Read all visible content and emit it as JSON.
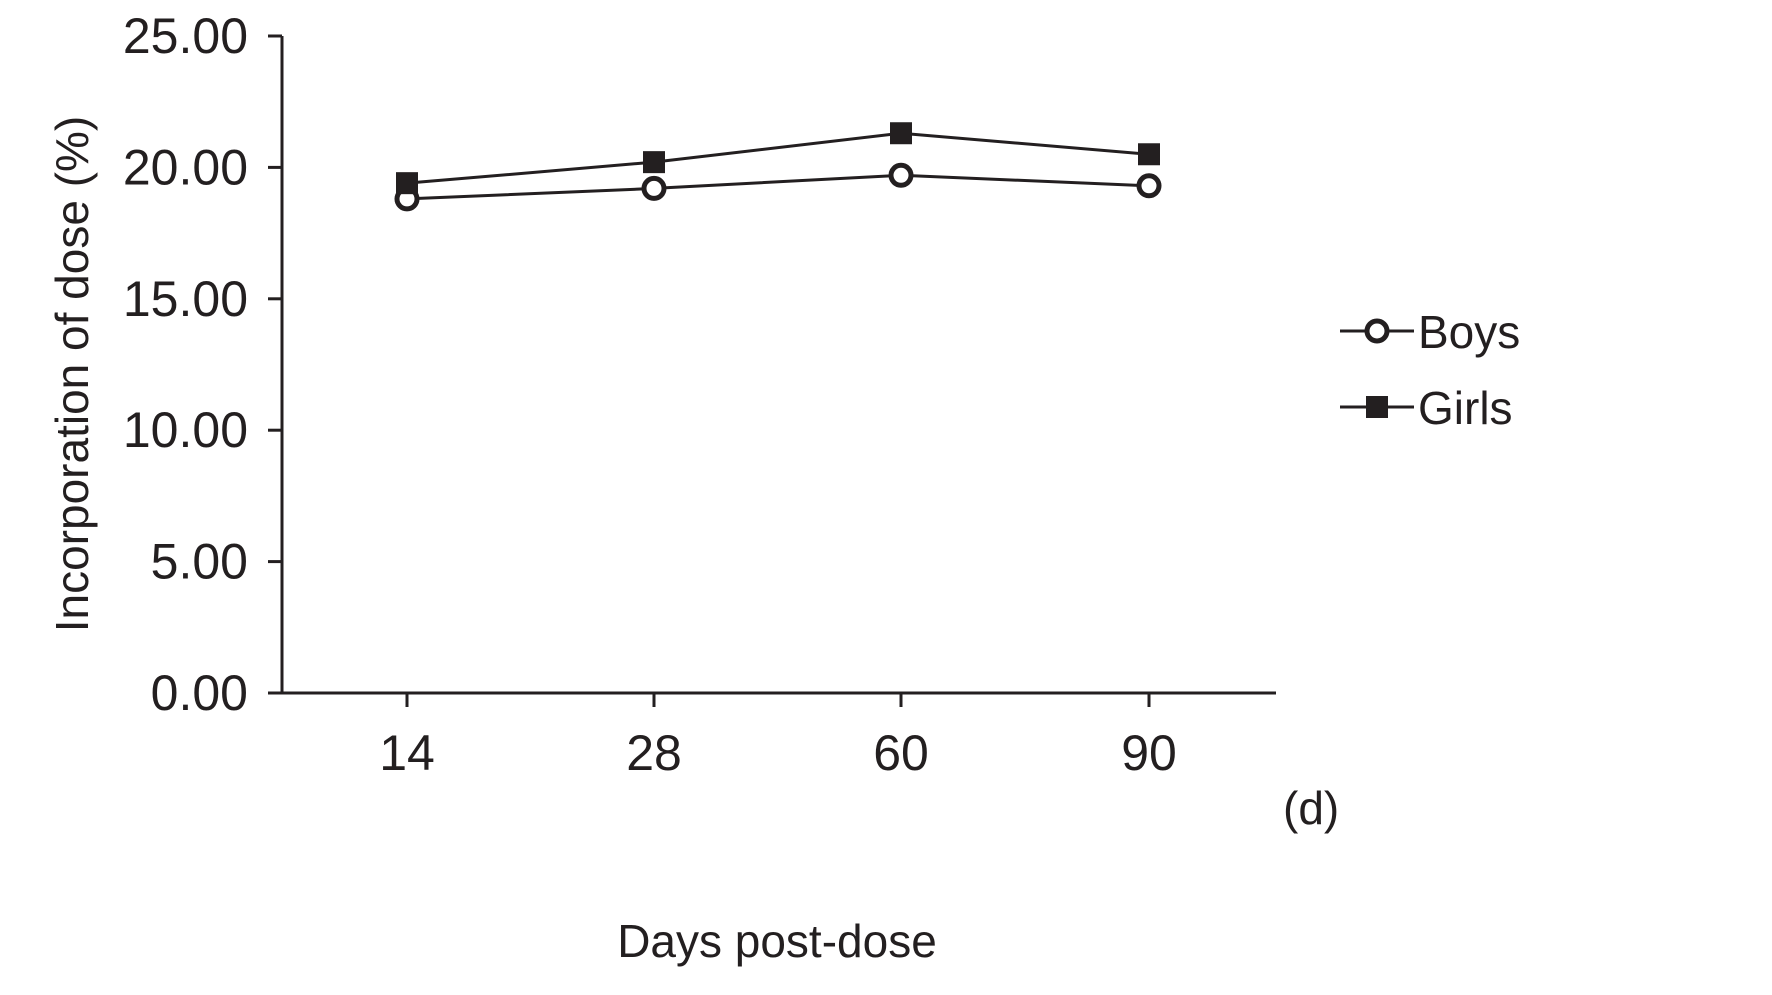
{
  "chart_data": {
    "type": "line",
    "title": "",
    "xlabel": "Days post-dose",
    "x_unit_label": "(d)",
    "ylabel": "Incorporation of dose (%)",
    "categories": [
      "14",
      "28",
      "60",
      "90"
    ],
    "ylim": [
      0,
      25
    ],
    "yticks": [
      0,
      5,
      10,
      15,
      20,
      25
    ],
    "ytick_labels": [
      "0.00",
      "5.00",
      "10.00",
      "15.00",
      "20.00",
      "25.00"
    ],
    "grid": false,
    "legend_position": "right",
    "series": [
      {
        "name": "Boys",
        "marker": "open-circle",
        "values": [
          18.8,
          19.2,
          19.7,
          19.3
        ]
      },
      {
        "name": "Girls",
        "marker": "filled-square",
        "values": [
          19.4,
          20.2,
          21.3,
          20.5
        ]
      }
    ],
    "line_color": "#231f20"
  }
}
